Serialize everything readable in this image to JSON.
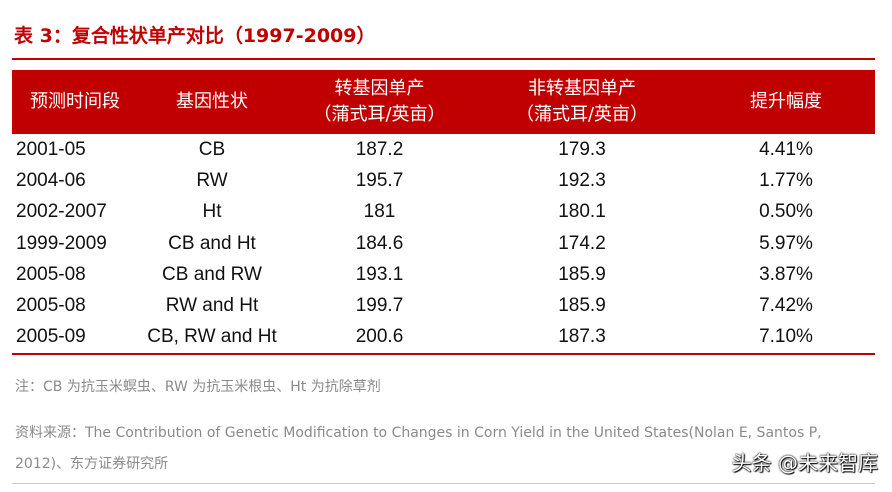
{
  "title": "表 3：复合性状单产对比（1997-2009）",
  "table": {
    "headers": [
      {
        "line1": "预测时间段",
        "line2": ""
      },
      {
        "line1": "基因性状",
        "line2": ""
      },
      {
        "line1": "转基因单产",
        "line2": "（蒲式耳/英亩）"
      },
      {
        "line1": "非转基因单产",
        "line2": "（蒲式耳/英亩）"
      },
      {
        "line1": "提升幅度",
        "line2": ""
      }
    ],
    "rows": [
      [
        "2001-05",
        "CB",
        "187.2",
        "179.3",
        "4.41%"
      ],
      [
        "2004-06",
        "RW",
        "195.7",
        "192.3",
        "1.77%"
      ],
      [
        "2002-2007",
        "Ht",
        "181",
        "180.1",
        "0.50%"
      ],
      [
        "1999-2009",
        "CB and Ht",
        "184.6",
        "174.2",
        "5.97%"
      ],
      [
        "2005-08",
        "CB and RW",
        "193.1",
        "185.9",
        "3.87%"
      ],
      [
        "2005-08",
        "RW and Ht",
        "199.7",
        "185.9",
        "7.42%"
      ],
      [
        "2005-09",
        "CB, RW and Ht",
        "200.6",
        "187.3",
        "7.10%"
      ]
    ]
  },
  "note": "注：CB 为抗玉米螟虫、RW 为抗玉米根虫、Ht 为抗除草剂",
  "source_line1": "资料来源：The Contribution of Genetic Modification to Changes in Corn Yield in the United States(Nolan E, Santos P,",
  "source_line2": "2012)、东方证券研究所",
  "watermark": "头条 @未来智库",
  "colors": {
    "accent": "#c00000",
    "muted_text": "#8a8a8a"
  }
}
